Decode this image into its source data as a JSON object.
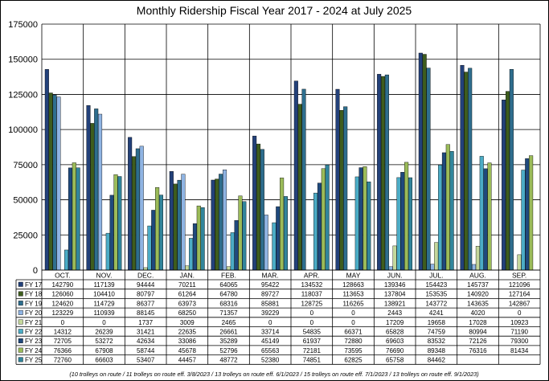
{
  "chart_data": {
    "type": "bar",
    "title": "Monthly Ridership Fiscal Year 2017 - 2024 at July 2025",
    "xlabel": "",
    "ylabel": "",
    "ylim": [
      0,
      175000
    ],
    "yticks": [
      0,
      25000,
      50000,
      75000,
      100000,
      125000,
      150000,
      175000
    ],
    "ytick_labels": [
      "0",
      "25000",
      "50000",
      "75000",
      "100000",
      "125000",
      "150000",
      "175000"
    ],
    "grid": true,
    "legend": "data-table-left",
    "categories": [
      "OCT.",
      "NOV.",
      "DEC.",
      "JAN.",
      "FEB.",
      "MAR.",
      "APR.",
      "MAY",
      "JUN.",
      "JUL.",
      "AUG.",
      "SEP."
    ],
    "series": [
      {
        "name": "FY 17",
        "color": "#23417a",
        "values": [
          142790,
          117139,
          94444,
          70211,
          64065,
          95422,
          134532,
          128663,
          139346,
          154423,
          145737,
          121096
        ]
      },
      {
        "name": "FY 18",
        "color": "#3e5d1e",
        "values": [
          126060,
          104410,
          80797,
          61264,
          64780,
          89727,
          118037,
          113653,
          137804,
          153535,
          140920,
          127164
        ]
      },
      {
        "name": "FY 19",
        "color": "#2e6e8e",
        "values": [
          124620,
          114729,
          86377,
          63973,
          68316,
          85881,
          128725,
          116265,
          138921,
          143772,
          143635,
          142867
        ]
      },
      {
        "name": "FY 20",
        "color": "#8fb4e3",
        "values": [
          123229,
          110939,
          88145,
          68250,
          71357,
          39229,
          0,
          0,
          2443,
          4241,
          4020,
          0
        ]
      },
      {
        "name": "FY 21",
        "color": "#c4d79b",
        "values": [
          0,
          0,
          1737,
          3009,
          2465,
          0,
          0,
          0,
          17209,
          19658,
          17028,
          10923
        ]
      },
      {
        "name": "FY 22",
        "color": "#4bacc6",
        "values": [
          14312,
          26239,
          31421,
          22635,
          26661,
          33714,
          54835,
          66371,
          65828,
          74759,
          80994,
          71190
        ]
      },
      {
        "name": "FY 23",
        "color": "#1f497d",
        "values": [
          72705,
          53272,
          42634,
          33086,
          35289,
          45149,
          61937,
          72880,
          69603,
          83532,
          72126,
          79300
        ]
      },
      {
        "name": "FY 24",
        "color": "#9bbb59",
        "values": [
          76366,
          67908,
          58744,
          45678,
          52796,
          65563,
          72181,
          73595,
          76690,
          89348,
          76316,
          81434
        ]
      },
      {
        "name": "FY 25",
        "color": "#31859c",
        "values": [
          72760,
          66603,
          53407,
          44457,
          48772,
          52380,
          74851,
          62825,
          65758,
          84462,
          null,
          null
        ]
      }
    ],
    "table_cells": [
      [
        "142790",
        "117139",
        "94444",
        "70211",
        "64065",
        "95422",
        "134532",
        "128663",
        "139346",
        "154423",
        "145737",
        "121096"
      ],
      [
        "126060",
        "104410",
        "80797",
        "61264",
        "64780",
        "89727",
        "118037",
        "113653",
        "137804",
        "153535",
        "140920",
        "127164"
      ],
      [
        "124620",
        "114729",
        "86377",
        "63973",
        "68316",
        "85881",
        "128725",
        "116265",
        "138921",
        "143772",
        "143635",
        "142867"
      ],
      [
        "123229",
        "110939",
        "88145",
        "68250",
        "71357",
        "39229",
        "0",
        "0",
        "2443",
        "4241",
        "4020",
        "0"
      ],
      [
        "0",
        "0",
        "1737",
        "3009",
        "2465",
        "0",
        "0",
        "0",
        "17209",
        "19658",
        "17028",
        "10923"
      ],
      [
        "14312",
        "26239",
        "31421",
        "22635",
        "26661",
        "33714",
        "54835",
        "66371",
        "65828",
        "74759",
        "80994",
        "71190"
      ],
      [
        "72705",
        "53272",
        "42634",
        "33086",
        "35289",
        "45149",
        "61937",
        "72880",
        "69603",
        "83532",
        "72126",
        "79300"
      ],
      [
        "76366",
        "67908",
        "58744",
        "45678",
        "52796",
        "65563",
        "72181",
        "73595",
        "76690",
        "89348",
        "76316",
        "81434"
      ],
      [
        "72760",
        "66603",
        "53407",
        "44457",
        "48772",
        "52380",
        "74851",
        "62825",
        "65758",
        "84462",
        "",
        ""
      ]
    ],
    "footnote": "(10 trolleys on route / 11 trolleys on route eff. 3/8/2023 / 13 trolleys on route eff. 6/1/2023 / 15 trolleys on route eff. 7/1/2023 / 13 trolleys on route eff. 9/1/2023)"
  }
}
